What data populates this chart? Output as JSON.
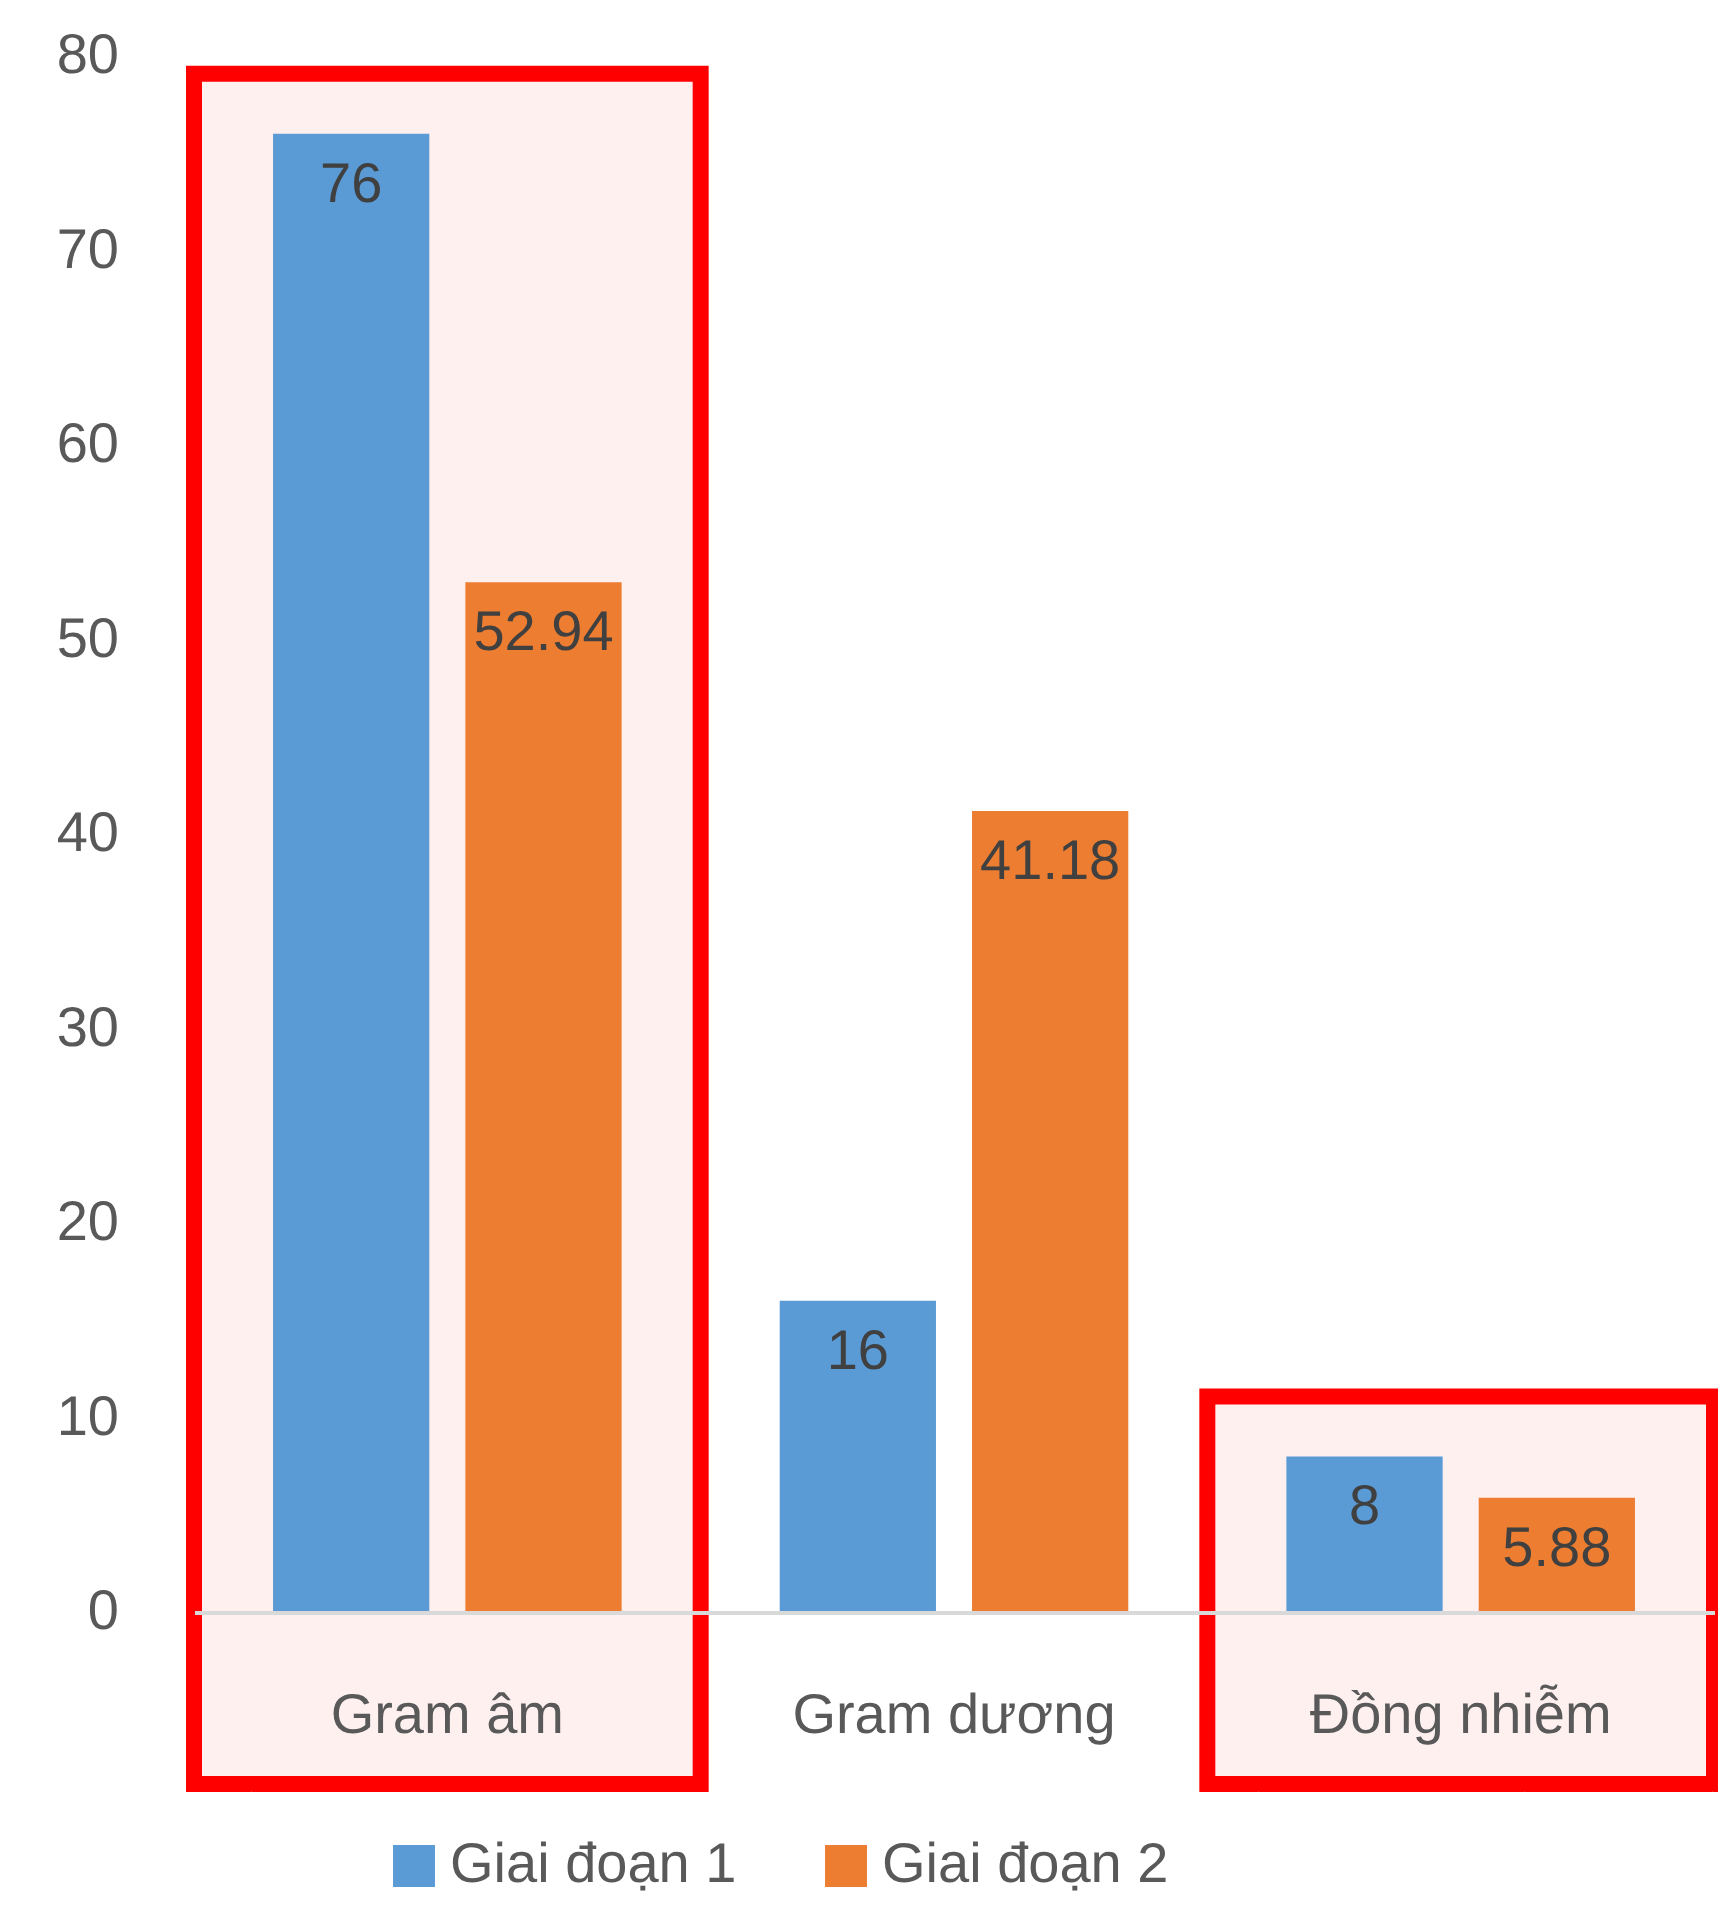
{
  "chart_data": {
    "type": "bar",
    "categories": [
      "Gram âm",
      "Gram dương",
      "Đồng nhiễm"
    ],
    "series": [
      {
        "name": "Giai đoạn 1",
        "color": "#5b9bd5",
        "values": [
          76,
          16,
          8
        ]
      },
      {
        "name": "Giai đoạn 2",
        "color": "#ed7d31",
        "values": [
          52.94,
          41.18,
          5.88
        ]
      }
    ],
    "ylim": [
      0,
      80
    ],
    "yticks": [
      0,
      10,
      20,
      30,
      40,
      50,
      60,
      70,
      80
    ],
    "grid": false,
    "data_labels": true,
    "legend": "bottom",
    "bands": [
      {
        "axis": "x",
        "from": "Gram âm",
        "to": "Gram âm",
        "color": "#ff0000"
      },
      {
        "axis": "x",
        "from": "Đồng nhiễm",
        "to": "Đồng nhiễm",
        "color": "#ff0000"
      }
    ]
  }
}
